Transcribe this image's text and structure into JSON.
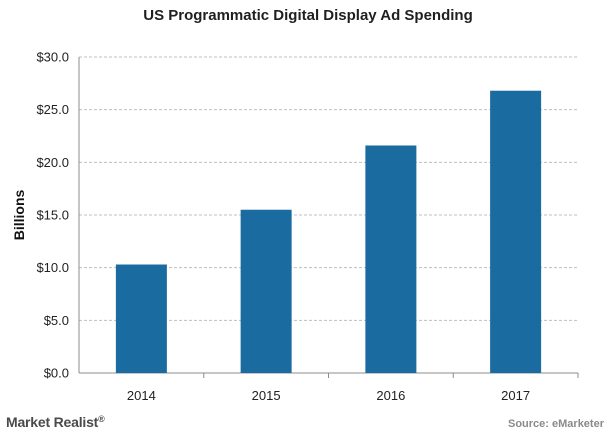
{
  "chart_data": {
    "type": "bar",
    "title": "US Programmatic Digital Display Ad Spending",
    "ylabel": "Billions",
    "xlabel": "",
    "categories": [
      "2014",
      "2015",
      "2016",
      "2017"
    ],
    "values": [
      10.3,
      15.5,
      21.6,
      26.8
    ],
    "ylim": [
      0,
      30
    ],
    "yticks": [
      "$0.0",
      "$5.0",
      "$10.0",
      "$15.0",
      "$20.0",
      "$25.0",
      "$30.0"
    ],
    "ytick_values": [
      0,
      5,
      10,
      15,
      20,
      25,
      30
    ],
    "bar_color": "#1a6ba0",
    "grid": true,
    "legend": "none"
  },
  "footer": {
    "brand": "Market Realist",
    "brand_mark": "®",
    "source": "Source: eMarketer"
  }
}
